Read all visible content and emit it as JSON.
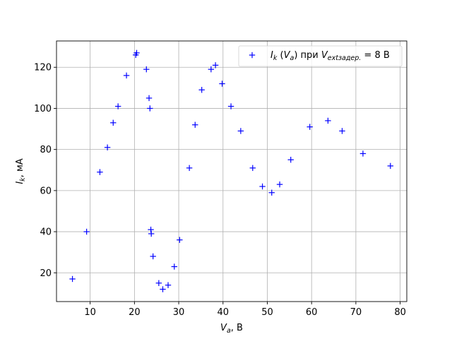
{
  "chart_data": {
    "type": "scatter",
    "xlabel": "V_a, В",
    "ylabel": "I_k, мА",
    "xlim": [
      2.4,
      81.5
    ],
    "ylim": [
      6.0,
      132.8
    ],
    "xticks": [
      10,
      20,
      30,
      40,
      50,
      60,
      70,
      80
    ],
    "yticks": [
      20,
      40,
      60,
      80,
      100,
      120
    ],
    "grid": true,
    "legend_position": "top-right",
    "series": [
      {
        "name": "I_k (V_a) при V_extзадер. = 8 В",
        "color": "#0000ff",
        "marker": "+",
        "x": [
          6.0,
          9.2,
          12.2,
          13.9,
          15.2,
          16.3,
          18.2,
          20.3,
          20.5,
          22.7,
          23.3,
          23.5,
          23.7,
          23.8,
          24.2,
          25.5,
          26.4,
          27.6,
          29.0,
          30.2,
          32.4,
          33.7,
          35.2,
          37.3,
          38.3,
          39.8,
          41.8,
          44.0,
          46.7,
          48.9,
          51.0,
          52.8,
          55.3,
          59.6,
          63.7,
          66.9,
          71.6,
          77.8
        ],
        "y": [
          17,
          40,
          69,
          81,
          93,
          101,
          116,
          126,
          127,
          119,
          105,
          100,
          41,
          39,
          28,
          15,
          12,
          14,
          23,
          36,
          71,
          92,
          109,
          119,
          121,
          112,
          101,
          89,
          71,
          62,
          59,
          63,
          75,
          91,
          94,
          89,
          78,
          72
        ]
      }
    ]
  }
}
